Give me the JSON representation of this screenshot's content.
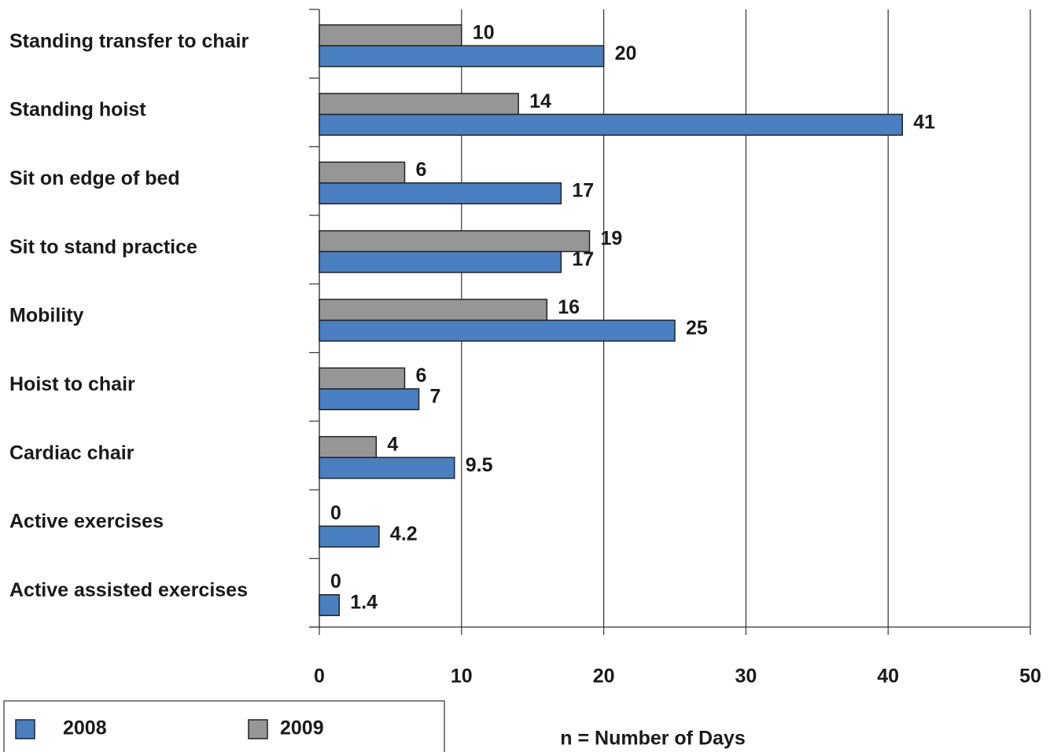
{
  "chart_data": {
    "type": "hbar",
    "categories": [
      "Standing transfer to chair",
      "Standing hoist",
      "Sit on edge of bed",
      "Sit to stand practice",
      "Mobility",
      "Hoist to chair",
      "Cardiac chair",
      "Active exercises",
      "Active assisted exercises"
    ],
    "series": [
      {
        "name": "2008",
        "color": "#4a7fc1",
        "values": [
          20,
          41,
          17,
          17,
          25,
          7,
          9.5,
          4.2,
          1.4
        ]
      },
      {
        "name": "2009",
        "color": "#969696",
        "values": [
          10,
          14,
          6,
          19,
          16,
          6,
          4,
          0,
          0
        ]
      }
    ],
    "xlim": [
      0,
      50
    ],
    "xticks": [
      0,
      10,
      20,
      30,
      40,
      50
    ],
    "grid": true,
    "xlabel": "n = Number of Days"
  }
}
